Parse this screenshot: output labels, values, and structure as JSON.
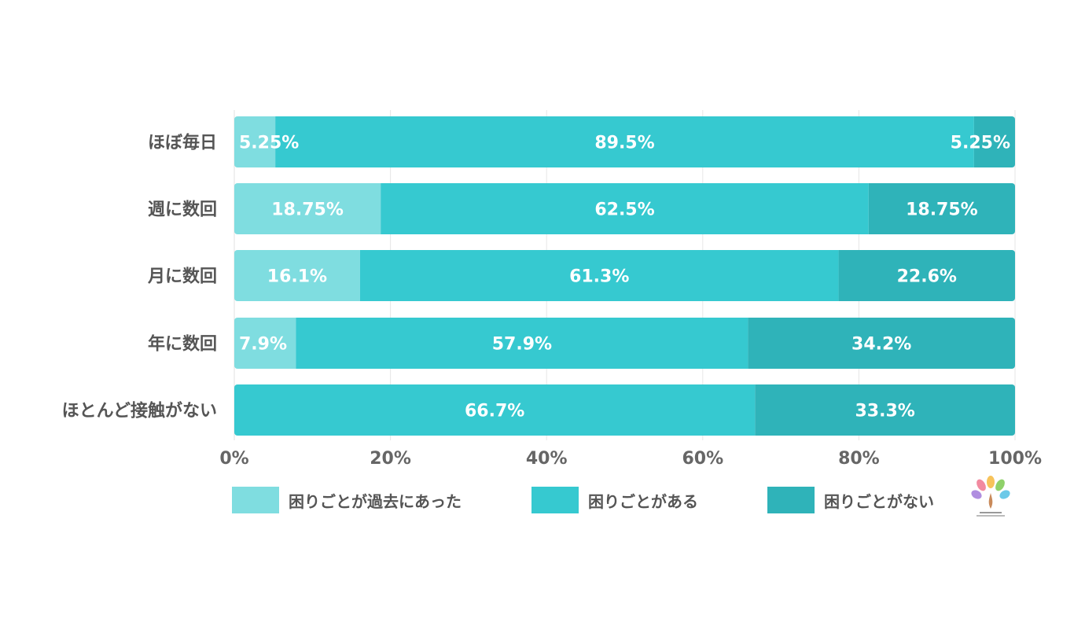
{
  "chart_data": {
    "type": "bar",
    "orientation": "horizontal",
    "stacked": true,
    "title": "",
    "xlabel": "",
    "ylabel": "",
    "xlim": [
      0,
      100
    ],
    "ticks": [
      "0%",
      "20%",
      "40%",
      "60%",
      "80%",
      "100%"
    ],
    "grid": true,
    "legend_position": "bottom",
    "categories": [
      "ほぼ毎日",
      "週に数回",
      "月に数回",
      "年に数回",
      "ほとんど接触がない"
    ],
    "series": [
      {
        "name": "困りごとが過去にあった",
        "color": "#7fdde0",
        "values": [
          5.25,
          18.75,
          16.1,
          7.9,
          0
        ],
        "labels": [
          "5.25%",
          "18.75%",
          "16.1%",
          "7.9%",
          ""
        ]
      },
      {
        "name": "困りごとがある",
        "color": "#36c9d0",
        "values": [
          89.5,
          62.5,
          61.3,
          57.9,
          66.7
        ],
        "labels": [
          "89.5%",
          "62.5%",
          "61.3%",
          "57.9%",
          "66.7%"
        ]
      },
      {
        "name": "困りごとがない",
        "color": "#2fb3b9",
        "values": [
          5.25,
          18.75,
          22.6,
          34.2,
          33.3
        ],
        "labels": [
          "5.25%",
          "18.75%",
          "22.6%",
          "34.2%",
          "33.3%"
        ]
      }
    ]
  },
  "logo": {
    "name": "research-institute-logo"
  }
}
